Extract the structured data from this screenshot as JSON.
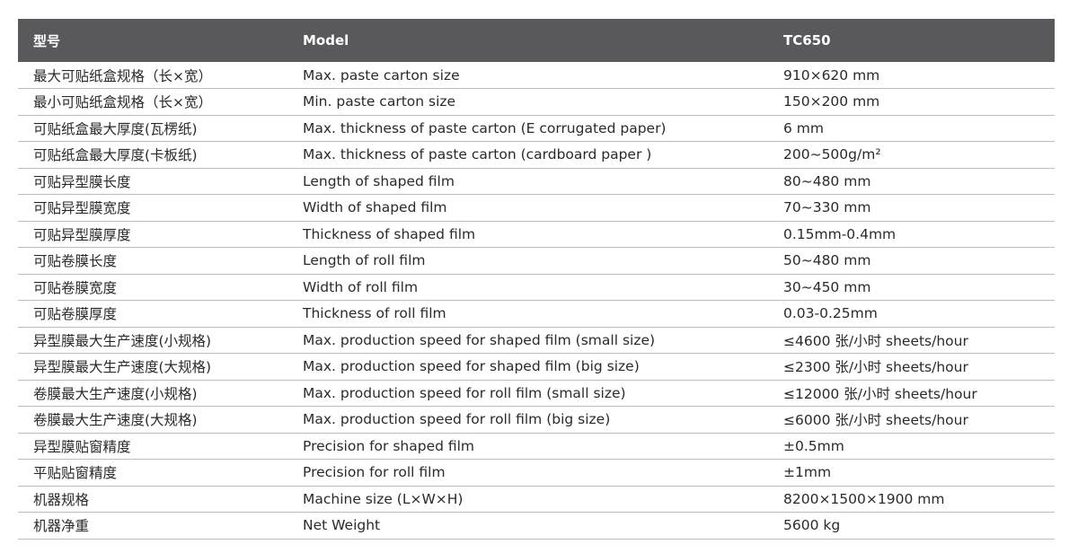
{
  "table": {
    "headers": [
      "型号",
      "Model",
      "TC650"
    ],
    "rows": [
      [
        "最大可贴纸盒规格（长×宽）",
        "Max. paste carton size",
        "910×620 mm"
      ],
      [
        "最小可贴纸盒规格（长×宽）",
        "Min. paste carton size",
        "150×200 mm"
      ],
      [
        "可贴纸盒最大厚度(瓦楞纸)",
        "Max. thickness of paste carton (E corrugated paper)",
        "6 mm"
      ],
      [
        "可贴纸盒最大厚度(卡板纸)",
        "Max. thickness of paste carton (cardboard paper )",
        "200~500g/m²"
      ],
      [
        "可贴异型膜长度",
        "Length of shaped film",
        "80~480 mm"
      ],
      [
        "可贴异型膜宽度",
        "Width of shaped film",
        "70~330 mm"
      ],
      [
        "可贴异型膜厚度",
        "Thickness of shaped film",
        "0.15mm-0.4mm"
      ],
      [
        "可贴卷膜长度",
        "Length of roll film",
        "50~480 mm"
      ],
      [
        "可贴卷膜宽度",
        "Width of roll film",
        "30~450 mm"
      ],
      [
        "可贴卷膜厚度",
        "Thickness of roll film",
        "0.03-0.25mm"
      ],
      [
        "异型膜最大生产速度(小规格)",
        "Max. production speed for shaped film (small size)",
        "≤4600  张/小时 sheets/hour"
      ],
      [
        "异型膜最大生产速度(大规格)",
        "Max. production speed for shaped film (big size)",
        "≤2300  张/小时 sheets/hour"
      ],
      [
        "卷膜最大生产速度(小规格)",
        "Max. production speed for roll film (small size)",
        "≤12000 张/小时 sheets/hour"
      ],
      [
        "卷膜最大生产速度(大规格)",
        "Max. production speed for roll film (big size)",
        "≤6000  张/小时 sheets/hour"
      ],
      [
        "异型膜贴窗精度",
        "Precision for shaped film",
        "±0.5mm"
      ],
      [
        "平贴贴窗精度",
        "Precision for roll film",
        "±1mm"
      ],
      [
        "机器规格",
        "Machine size (L×W×H)",
        "8200×1500×1900 mm"
      ],
      [
        "机器净重",
        "Net Weight",
        "5600 kg"
      ]
    ]
  },
  "colors": {
    "header_bg": "#59595b",
    "header_text": "#ffffff",
    "row_divider": "#bdbdbd",
    "body_text": "#2a2a2a"
  }
}
